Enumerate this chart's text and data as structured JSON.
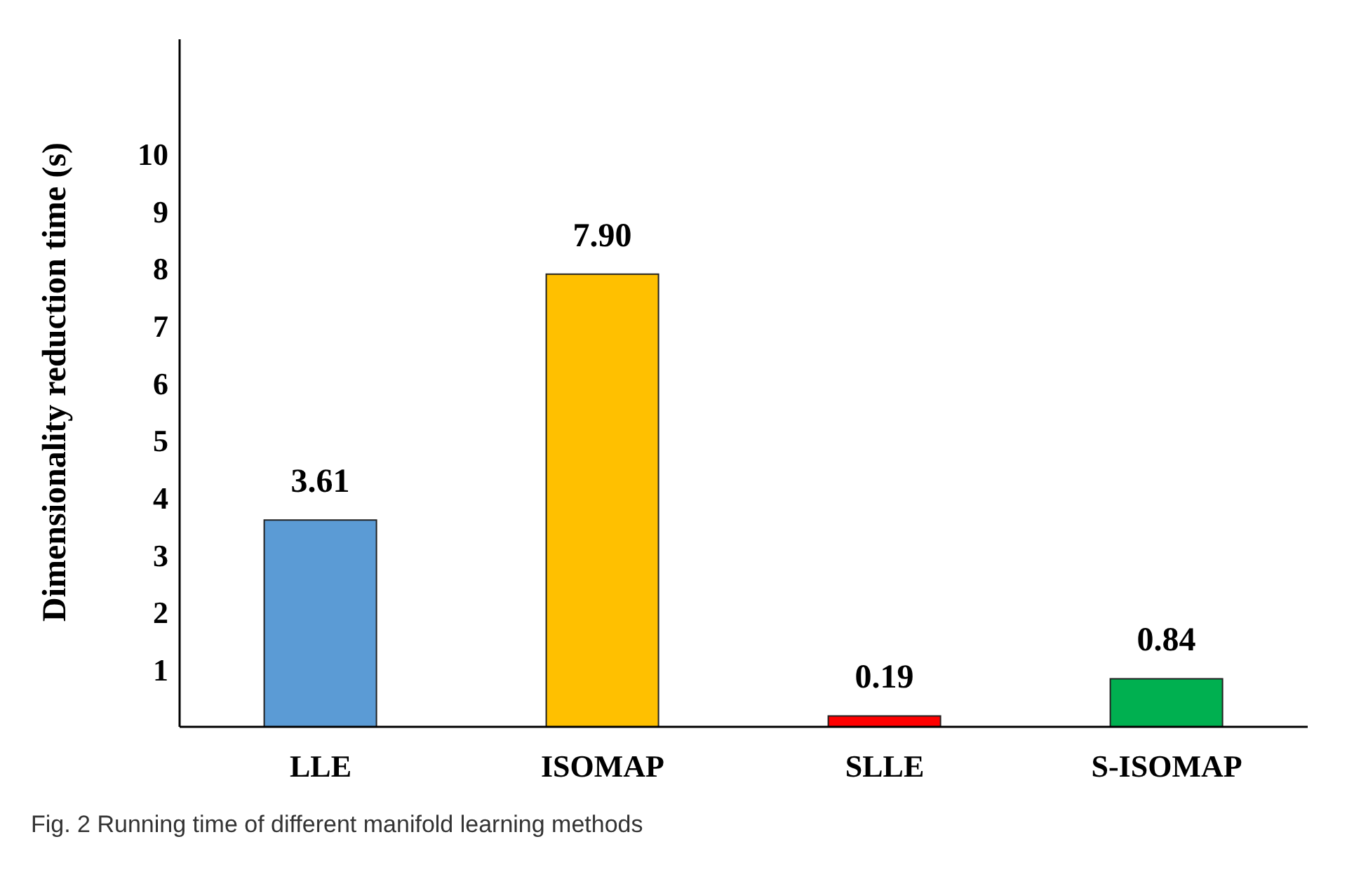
{
  "chart_data": {
    "type": "bar",
    "ylabel": "Dimensionality reduction time (s)",
    "categories": [
      "LLE",
      "ISOMAP",
      "SLLE",
      "S-ISOMAP"
    ],
    "values": [
      3.61,
      7.9,
      0.19,
      0.84
    ],
    "colors": [
      "#5b9bd5",
      "#ffc000",
      "#ff0000",
      "#00b050"
    ],
    "value_labels": [
      "3.61",
      "7.90",
      "0.19",
      "0.84"
    ],
    "ylim": [
      0,
      12
    ],
    "yticks": [
      1,
      2,
      3,
      4,
      5,
      6,
      7,
      8,
      9,
      10
    ],
    "grid": false,
    "annotations": [
      "Fig. 2 Running time of different manifold learning methods"
    ]
  }
}
